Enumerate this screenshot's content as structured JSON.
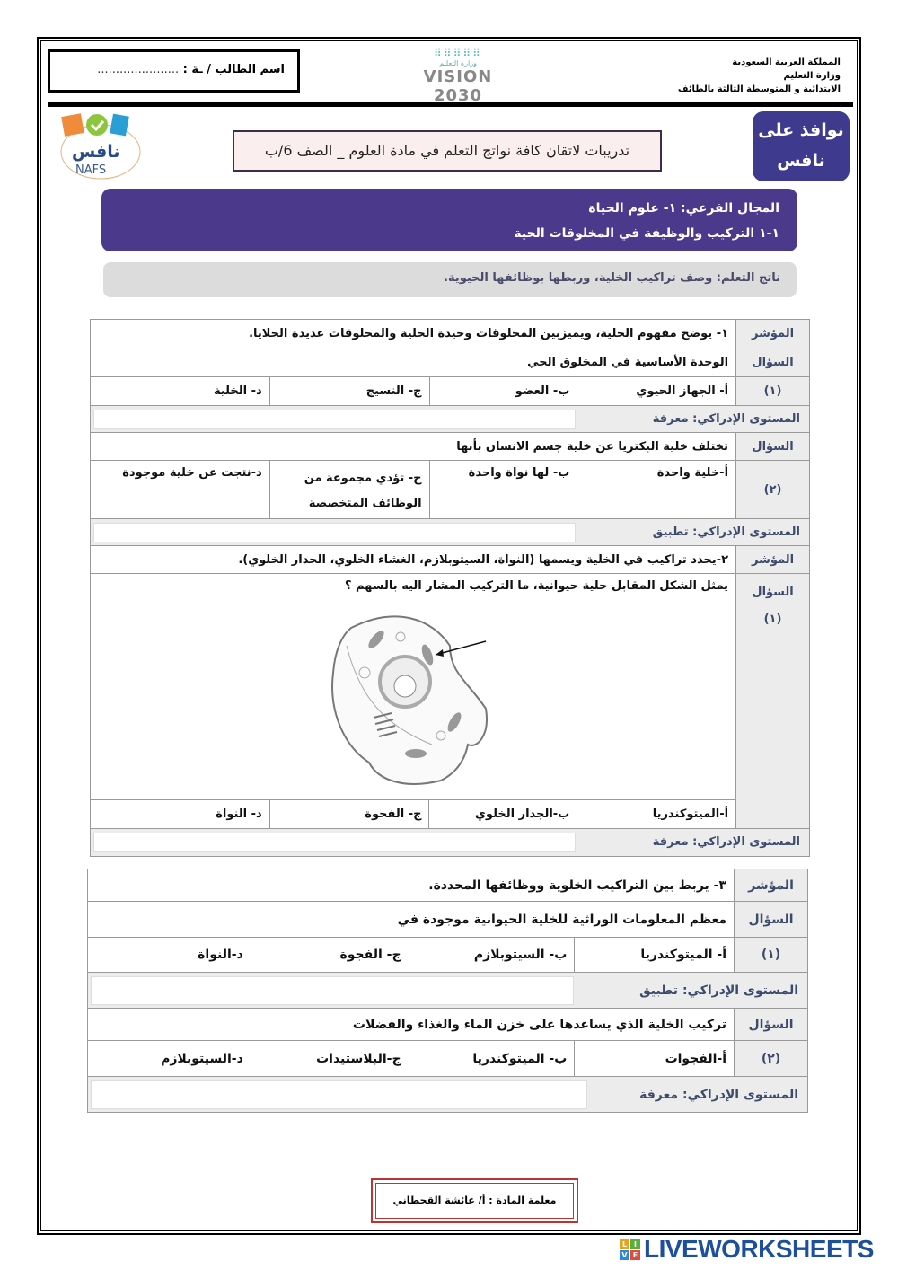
{
  "header": {
    "student_name_label": "اسم الطالب / ـة :",
    "student_name_dots": "......................",
    "org_lines": [
      "المملكة العربية السعودية",
      "وزارة التعليم",
      "الابتدائية و المتوسطة الثالثة بالطائف"
    ],
    "moe_logo_text": "وزارة التعليم",
    "vision_logo_text": "VISION 2030",
    "title": "تدريبات لاتقان كافة نواتج التعلم في مادة العلوم _ الصف 6/ب",
    "nafs_left": "نافس",
    "nafs_left_en": "NAFS",
    "nafs_right": "نوافذ على نافس"
  },
  "banner": {
    "line1": "المجال الفرعي: ١- علوم الحياة",
    "line2": "١-١ التركيب والوظيفة في المخلوقات الحية"
  },
  "outcome": "ناتج التعلم: وصف تراكيب الخلية، وربطها بوظائفها الحيوية.",
  "labels": {
    "indicator": "المؤشر",
    "question": "السؤال",
    "level": "المستوى الإدراكي:"
  },
  "sections": [
    {
      "indicator": "١- يوضح مفهوم الخلية، ويميزبين المخلوقات وحيدة الخلية والمخلوقات عديدة الخلايا.",
      "questions": [
        {
          "num": "(١)",
          "text": "الوحدة الأساسية في المخلوق الحي",
          "options": [
            "أ- الجهاز الحيوي",
            "ب- العضو",
            "ج- النسيج",
            "د- الخلية"
          ],
          "level": "معرفة"
        },
        {
          "num": "(٢)",
          "text": "تختلف خلية البكتريا عن خلية جسم الانسان بأنها",
          "options": [
            "أ-خلية واحدة",
            "ب- لها نواة واحدة",
            "ج- تؤدي مجموعة من الوظائف المتخصصة",
            "د-نتجت عن خلية موجودة"
          ],
          "level": "تطبيق"
        }
      ]
    },
    {
      "indicator": "٢-يحدد تراكيب في الخلية ويسمها (النواة، السيتوبلازم، الغشاء الخلوي، الجدار الخلوي).",
      "questions": [
        {
          "num": "(١)",
          "text": "يمثل الشكل المقابل خلية حيوانية، ما التركيب المشار اليه بالسهم ؟",
          "options": [
            "أ-الميتوكندريا",
            "ب-الجدار الخلوي",
            "ج- الفجوة",
            "د- النواة"
          ],
          "level": "معرفة"
        }
      ]
    },
    {
      "indicator": "٣- يربط بين التراكيب الخلوية ووظائفها المحددة.",
      "questions": [
        {
          "num": "(١)",
          "text": "معظم المعلومات الوراثية للخلية الحيوانية موجودة في",
          "options": [
            "أ- الميتوكندريا",
            "ب- السيتوبلازم",
            "ج- الفجوة",
            "د-النواة"
          ],
          "level": "تطبيق"
        },
        {
          "num": "(٢)",
          "text": "تركيب الخلية الذي يساعدها على خزن الماء والغذاء والفضلات",
          "options": [
            "أ-الفجوات",
            "ب- الميتوكندريا",
            "ج-البلاستيدات",
            "د-السيتوبلازم"
          ],
          "level": "معرفة"
        }
      ]
    }
  ],
  "footer": {
    "teacher": "معلمة المادة : أ/ عائشة القحطاني",
    "watermark": "LIVEWORKSHEETS",
    "watermark_tiles": [
      "L",
      "I",
      "V",
      "E"
    ]
  },
  "colors": {
    "banner": "#4b3a8c",
    "label": "#3c4a6b",
    "teacher_border": "#b33333",
    "watermark": "#1d4f9c"
  }
}
